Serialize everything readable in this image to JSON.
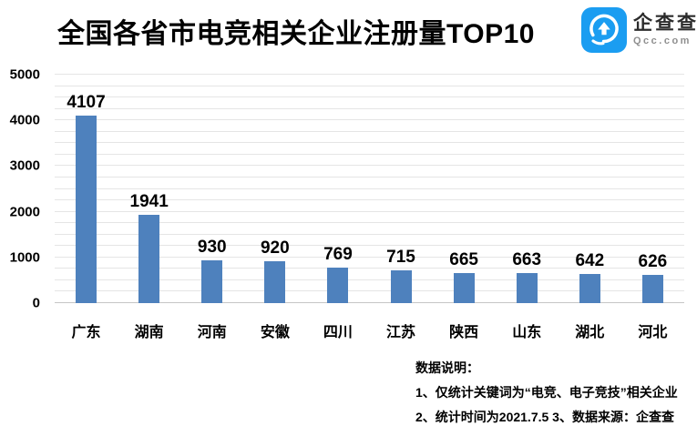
{
  "header": {
    "title": "全国各省市电竞相关企业注册量TOP10",
    "logo": {
      "name": "企查查",
      "domain": "Qcc.com",
      "brand_color": "#1b9df1"
    }
  },
  "chart_data": {
    "type": "bar",
    "title": "全国各省市电竞相关企业注册量TOP10",
    "categories": [
      "广东",
      "湖南",
      "河南",
      "安徽",
      "四川",
      "江苏",
      "陕西",
      "山东",
      "湖北",
      "河北"
    ],
    "values": [
      4107,
      1941,
      930,
      920,
      769,
      715,
      665,
      663,
      642,
      626
    ],
    "xlabel": "",
    "ylabel": "",
    "ylim": [
      0,
      5000
    ],
    "y_ticks": [
      0,
      1000,
      2000,
      3000,
      4000,
      5000
    ],
    "minor_grid_step": 250,
    "grid": true,
    "legend": false,
    "bar_color": "#4e81bd",
    "value_labels": true
  },
  "notes": {
    "heading": "数据说明：",
    "lines": [
      "1、仅统计关键词为“电竞、电子竞技”相关企业",
      "2、统计时间为2021.7.5 3、数据来源：企查查"
    ]
  }
}
